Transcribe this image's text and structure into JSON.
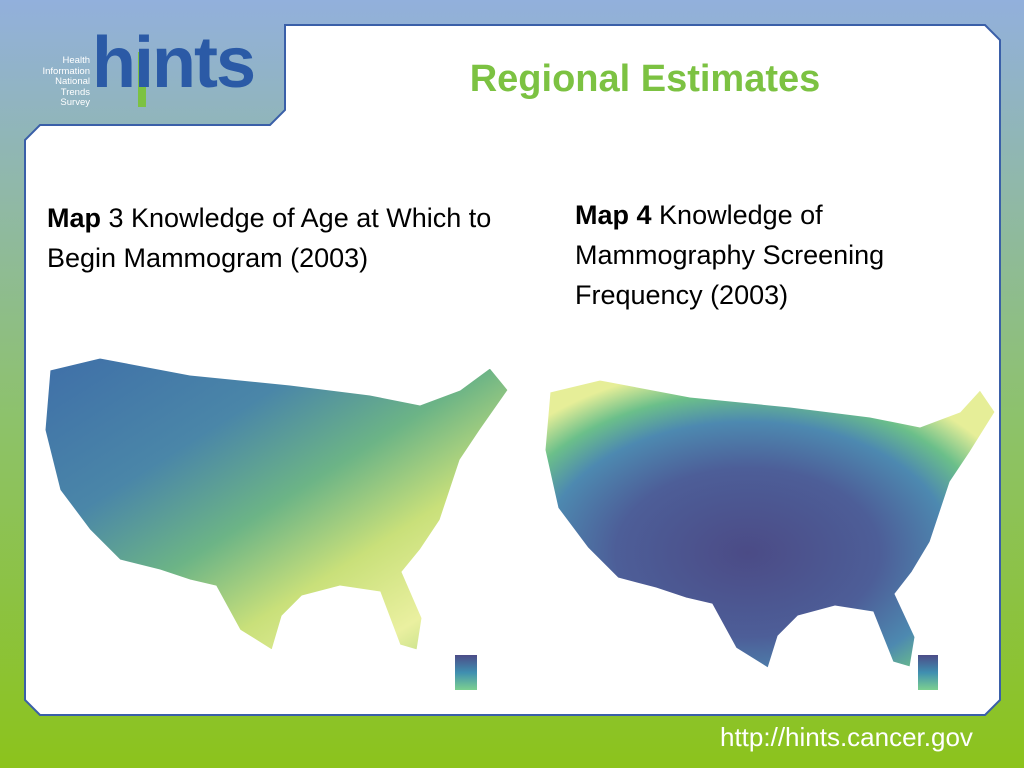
{
  "logo": {
    "wordmark": "hints",
    "tagline": [
      "Health",
      "Information",
      "National",
      "Trends",
      "Survey"
    ]
  },
  "title": "Regional Estimates",
  "maps": [
    {
      "label": "Map",
      "caption": "3 Knowledge of Age at Which to Begin Mammogram (2003)"
    },
    {
      "label": "Map 4",
      "caption": "Knowledge of Mammography Screening Frequency (2003)"
    }
  ],
  "footer": {
    "url": "http://hints.cancer.gov"
  }
}
